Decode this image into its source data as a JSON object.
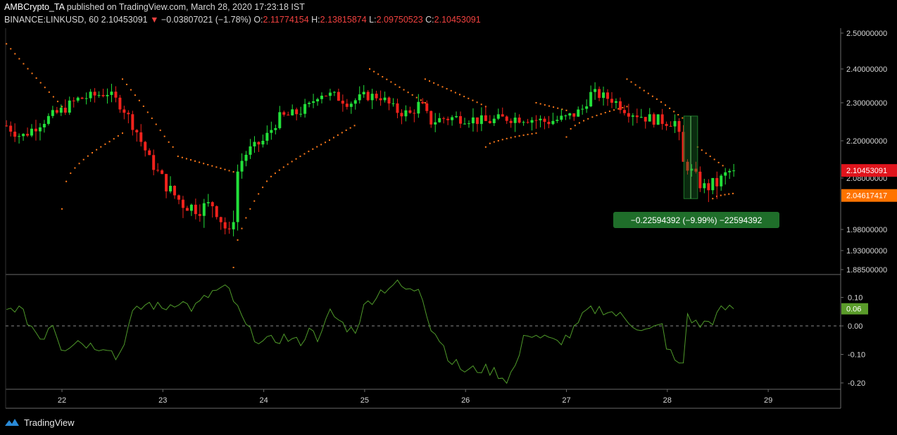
{
  "header": {
    "publisher": "AMBCrypto_TA",
    "published_text": "published on TradingView.com, March 28, 2020 17:23:18 IST",
    "symbol": "BINANCE:LINKUSD, 60",
    "last": "2.10453091",
    "change_arrow": "▼",
    "change": "−0.03807021 (−1.78%)",
    "o_label": "O:",
    "o": "2.11774154",
    "h_label": "H:",
    "h": "2.13815874",
    "l_label": "L:",
    "l": "2.09750523",
    "c_label": "C:",
    "c": "2.10453091"
  },
  "colors": {
    "up": "#22e03a",
    "down": "#f0221c",
    "sar": "#ff7a1a",
    "osc": "#4f9a2a",
    "price_badge": "#e0141c",
    "sar_badge": "#ff7300",
    "measure": "#1e7a2a",
    "osc_badge": "#5a9c2a"
  },
  "footer": {
    "brand": "TradingView",
    "logo_icon": "tradingview-logo-icon"
  },
  "chart_data": {
    "type": "candlestick",
    "price_axis": {
      "ylim": [
        1.875,
        2.51
      ],
      "ticks": [
        "2.50000000",
        "2.40000000",
        "2.30000000",
        "2.20000000",
        "2.08000000",
        "1.98000000",
        "1.93000000",
        "1.88500000"
      ],
      "tick_values": [
        2.5,
        2.4,
        2.3,
        2.2,
        2.08,
        1.98,
        1.93,
        1.885
      ]
    },
    "x_axis": {
      "labels": [
        "22",
        "23",
        "24",
        "25",
        "26",
        "27",
        "28",
        "29"
      ],
      "day_start": 21.45,
      "day_end": 29.75
    },
    "candles_keypoints": [
      [
        21.45,
        2.24
      ],
      [
        21.6,
        2.21
      ],
      [
        21.8,
        2.25
      ],
      [
        22.0,
        2.28
      ],
      [
        22.15,
        2.31
      ],
      [
        22.3,
        2.32
      ],
      [
        22.45,
        2.33
      ],
      [
        22.6,
        2.29
      ],
      [
        22.75,
        2.22
      ],
      [
        22.9,
        2.12
      ],
      [
        23.05,
        2.06
      ],
      [
        23.2,
        2.03
      ],
      [
        23.35,
        2.02
      ],
      [
        23.5,
        2.03
      ],
      [
        23.6,
        1.99
      ],
      [
        23.68,
        1.96
      ],
      [
        23.75,
        2.12
      ],
      [
        23.85,
        2.17
      ],
      [
        24.0,
        2.2
      ],
      [
        24.15,
        2.26
      ],
      [
        24.3,
        2.27
      ],
      [
        24.45,
        2.29
      ],
      [
        24.55,
        2.33
      ],
      [
        24.7,
        2.32
      ],
      [
        24.85,
        2.3
      ],
      [
        25.0,
        2.32
      ],
      [
        25.15,
        2.32
      ],
      [
        25.3,
        2.28
      ],
      [
        25.45,
        2.27
      ],
      [
        25.55,
        2.3
      ],
      [
        25.65,
        2.25
      ],
      [
        25.8,
        2.26
      ],
      [
        26.0,
        2.26
      ],
      [
        26.2,
        2.25
      ],
      [
        26.4,
        2.26
      ],
      [
        26.6,
        2.26
      ],
      [
        26.8,
        2.25
      ],
      [
        27.0,
        2.26
      ],
      [
        27.15,
        2.28
      ],
      [
        27.25,
        2.33
      ],
      [
        27.45,
        2.31
      ],
      [
        27.6,
        2.28
      ],
      [
        27.8,
        2.26
      ],
      [
        28.0,
        2.25
      ],
      [
        28.1,
        2.25
      ],
      [
        28.15,
        2.13
      ],
      [
        28.25,
        2.1
      ],
      [
        28.35,
        2.06
      ],
      [
        28.5,
        2.07
      ],
      [
        28.6,
        2.1
      ],
      [
        28.66,
        2.104
      ]
    ],
    "last_price": 2.10453091,
    "last_price_label": "2.10453091",
    "sar_value": 2.04617417,
    "sar_label": "2.04617417",
    "parabolic_sar_segments": [
      {
        "side": "above",
        "x": [
          21.45,
          22.0
        ],
        "y": [
          2.47,
          2.29
        ]
      },
      {
        "side": "below",
        "x": [
          22.0,
          22.6
        ],
        "y": [
          2.02,
          2.22
        ]
      },
      {
        "side": "above",
        "x": [
          22.6,
          23.1
        ],
        "y": [
          2.37,
          2.18
        ]
      },
      {
        "side": "above",
        "x": [
          23.15,
          23.7
        ],
        "y": [
          2.15,
          2.1
        ]
      },
      {
        "side": "below",
        "x": [
          23.7,
          24.9
        ],
        "y": [
          1.89,
          2.24
        ]
      },
      {
        "side": "above",
        "x": [
          25.05,
          25.6
        ],
        "y": [
          2.4,
          2.3
        ]
      },
      {
        "side": "above",
        "x": [
          25.6,
          26.2
        ],
        "y": [
          2.37,
          2.29
        ]
      },
      {
        "side": "below",
        "x": [
          26.2,
          26.7
        ],
        "y": [
          2.18,
          2.22
        ]
      },
      {
        "side": "above",
        "x": [
          26.7,
          27.0
        ],
        "y": [
          2.3,
          2.28
        ]
      },
      {
        "side": "below",
        "x": [
          27.0,
          27.6
        ],
        "y": [
          2.21,
          2.29
        ]
      },
      {
        "side": "above",
        "x": [
          27.6,
          28.15
        ],
        "y": [
          2.37,
          2.26
        ]
      },
      {
        "side": "above",
        "x": [
          28.3,
          28.55
        ],
        "y": [
          2.18,
          2.12
        ]
      },
      {
        "side": "below",
        "x": [
          28.45,
          28.65
        ],
        "y": [
          2.04,
          2.05
        ]
      }
    ],
    "measure": {
      "x_start": 28.15,
      "x_end": 28.3,
      "y_top": 2.265,
      "y_bottom": 2.04,
      "label": "−0.22594392 (−9.99%) −22594392"
    },
    "oscillator": {
      "ylim": [
        -0.23,
        0.17
      ],
      "ticks": [
        "0.10",
        "0.00",
        "-0.10",
        "-0.20"
      ],
      "tick_values": [
        0.1,
        0.0,
        -0.1,
        -0.2
      ],
      "zero_line": 0.0,
      "last_label": "0.06",
      "last_value": 0.06,
      "keypoints": [
        [
          21.45,
          0.05
        ],
        [
          21.55,
          0.07
        ],
        [
          21.7,
          0.0
        ],
        [
          21.8,
          -0.05
        ],
        [
          21.9,
          0.02
        ],
        [
          22.0,
          -0.08
        ],
        [
          22.15,
          -0.05
        ],
        [
          22.3,
          -0.07
        ],
        [
          22.45,
          -0.07
        ],
        [
          22.55,
          -0.12
        ],
        [
          22.7,
          0.04
        ],
        [
          22.85,
          0.08
        ],
        [
          23.0,
          0.06
        ],
        [
          23.15,
          0.09
        ],
        [
          23.3,
          0.06
        ],
        [
          23.5,
          0.12
        ],
        [
          23.65,
          0.13
        ],
        [
          23.75,
          0.05
        ],
        [
          23.85,
          -0.02
        ],
        [
          24.0,
          -0.06
        ],
        [
          24.2,
          -0.04
        ],
        [
          24.35,
          -0.06
        ],
        [
          24.5,
          0.0
        ],
        [
          24.55,
          -0.06
        ],
        [
          24.65,
          0.05
        ],
        [
          24.8,
          0.0
        ],
        [
          24.9,
          -0.02
        ],
        [
          25.0,
          0.07
        ],
        [
          25.15,
          0.12
        ],
        [
          25.3,
          0.15
        ],
        [
          25.45,
          0.12
        ],
        [
          25.55,
          0.14
        ],
        [
          25.65,
          0.0
        ],
        [
          25.75,
          -0.05
        ],
        [
          25.85,
          -0.12
        ],
        [
          26.0,
          -0.16
        ],
        [
          26.15,
          -0.15
        ],
        [
          26.3,
          -0.16
        ],
        [
          26.4,
          -0.19
        ],
        [
          26.5,
          -0.14
        ],
        [
          26.6,
          -0.02
        ],
        [
          26.75,
          -0.04
        ],
        [
          26.9,
          -0.06
        ],
        [
          27.05,
          -0.03
        ],
        [
          27.2,
          0.05
        ],
        [
          27.35,
          0.06
        ],
        [
          27.5,
          0.04
        ],
        [
          27.65,
          0.01
        ],
        [
          27.8,
          -0.02
        ],
        [
          27.95,
          0.0
        ],
        [
          28.0,
          -0.08
        ],
        [
          28.15,
          -0.16
        ],
        [
          28.2,
          0.04
        ],
        [
          28.3,
          0.0
        ],
        [
          28.45,
          0.02
        ],
        [
          28.55,
          0.06
        ],
        [
          28.66,
          0.06
        ]
      ]
    }
  }
}
